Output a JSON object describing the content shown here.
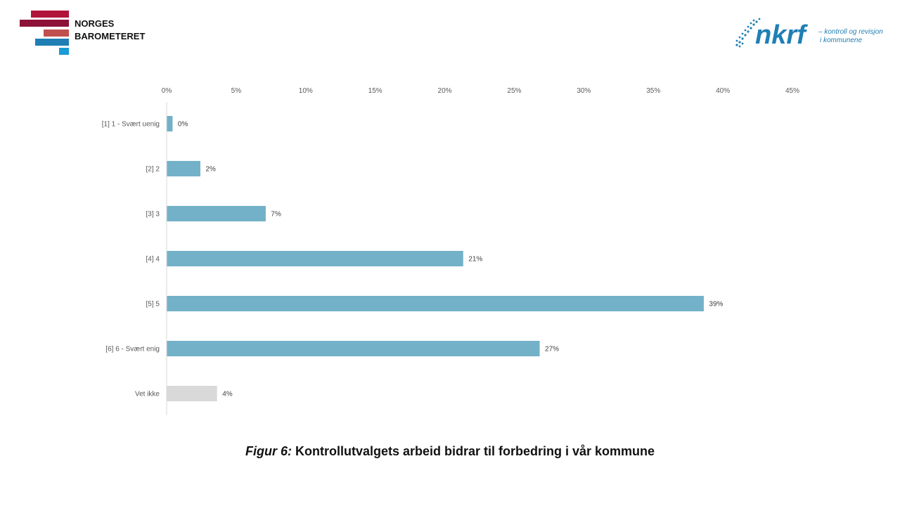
{
  "logos": {
    "norges_barometeret": {
      "line1": "NORGES",
      "line2": "BAROMETERET"
    },
    "nkrf": {
      "wordmark": "nkrf",
      "tagline1": "– kontroll og revisjon",
      "tagline2": "i kommunene"
    }
  },
  "caption": {
    "prefix": "Figur 6:",
    "text": "Kontrollutvalgets  arbeid bidrar til forbedring  i vår kommune"
  },
  "colors": {
    "bar": "#72b1c8",
    "bar_unknown": "#d9d9d9",
    "axis": "#d9d9d9",
    "nkrf": "#1f7fb5"
  },
  "chart_data": {
    "type": "bar",
    "orientation": "horizontal",
    "categories": [
      "[1] 1 - Svært uenig",
      "[2] 2",
      "[3] 3",
      "[4] 4",
      "[5] 5",
      "[6] 6 - Svært enig",
      "Vet ikke"
    ],
    "values": [
      0.4,
      2.4,
      7.1,
      21.3,
      38.6,
      26.8,
      3.6
    ],
    "value_labels": [
      "0%",
      "2%",
      "7%",
      "21%",
      "39%",
      "27%",
      "4%"
    ],
    "bar_colors": [
      "#72b1c8",
      "#72b1c8",
      "#72b1c8",
      "#72b1c8",
      "#72b1c8",
      "#72b1c8",
      "#d9d9d9"
    ],
    "xlim": [
      0,
      45
    ],
    "xticks": [
      0,
      5,
      10,
      15,
      20,
      25,
      30,
      35,
      40,
      45
    ],
    "xtick_labels": [
      "0%",
      "5%",
      "10%",
      "15%",
      "20%",
      "25%",
      "30%",
      "35%",
      "40%",
      "45%"
    ],
    "axis_position": "top",
    "grid": false,
    "legend": "none"
  }
}
